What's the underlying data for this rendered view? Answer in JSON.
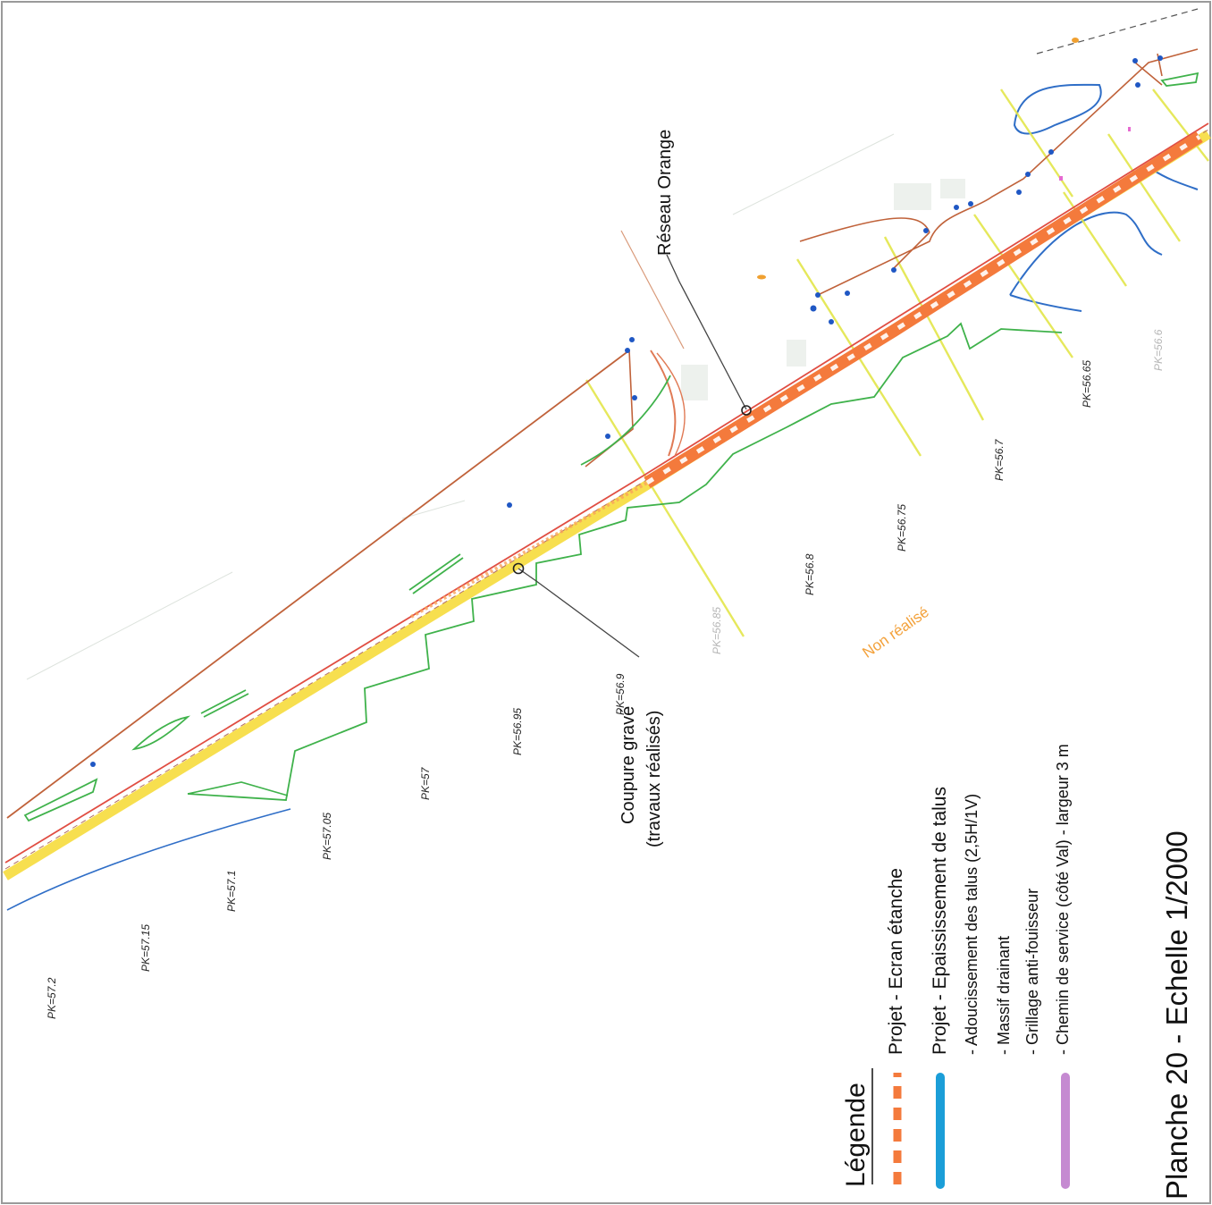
{
  "plate": {
    "title": "Planche 20 - Echelle 1/2000"
  },
  "legend": {
    "title": "Légende",
    "items": [
      {
        "label": "Projet - Ecran étanche",
        "swatch": "dashed",
        "color": "#f47a3c"
      },
      {
        "label": "Projet - Epaississement de talus",
        "swatch": "solid",
        "color": "#1b9ed8"
      },
      {
        "label": "- Adoucissement des talus (2,5H/1V)",
        "swatch": "none"
      },
      {
        "label": "- Massif drainant",
        "swatch": "none"
      },
      {
        "label": "- Grillage anti-fouisseur",
        "swatch": "none"
      },
      {
        "label": "- Chemin de service (côté Val) - largeur 3 m",
        "swatch": "solid",
        "color": "#c58ad1"
      }
    ]
  },
  "callouts": {
    "reseau": "Réseau Orange",
    "coupure_line1": "Coupure gravé",
    "coupure_line2": "(travaux réalisés)",
    "non_realise": "Non réalisé"
  },
  "pk_markers": [
    "PK=57.2",
    "PK=57.15",
    "PK=57.1",
    "PK=57.05",
    "PK=57",
    "PK=56.95",
    "PK=56.9",
    "PK=56.85",
    "PK=56.8",
    "PK=56.75",
    "PK=56.7",
    "PK=56.65",
    "PK=56.6"
  ],
  "colors": {
    "ecran_etanche": "#f47a3c",
    "talus": "#1b9ed8",
    "chemin_service": "#c58ad1",
    "reseau_orange_line": "#c0623a",
    "embankment_green": "#39b54a",
    "pk_line_yellow": "#e6e84a",
    "road_yellow": "#f6dc3c"
  }
}
